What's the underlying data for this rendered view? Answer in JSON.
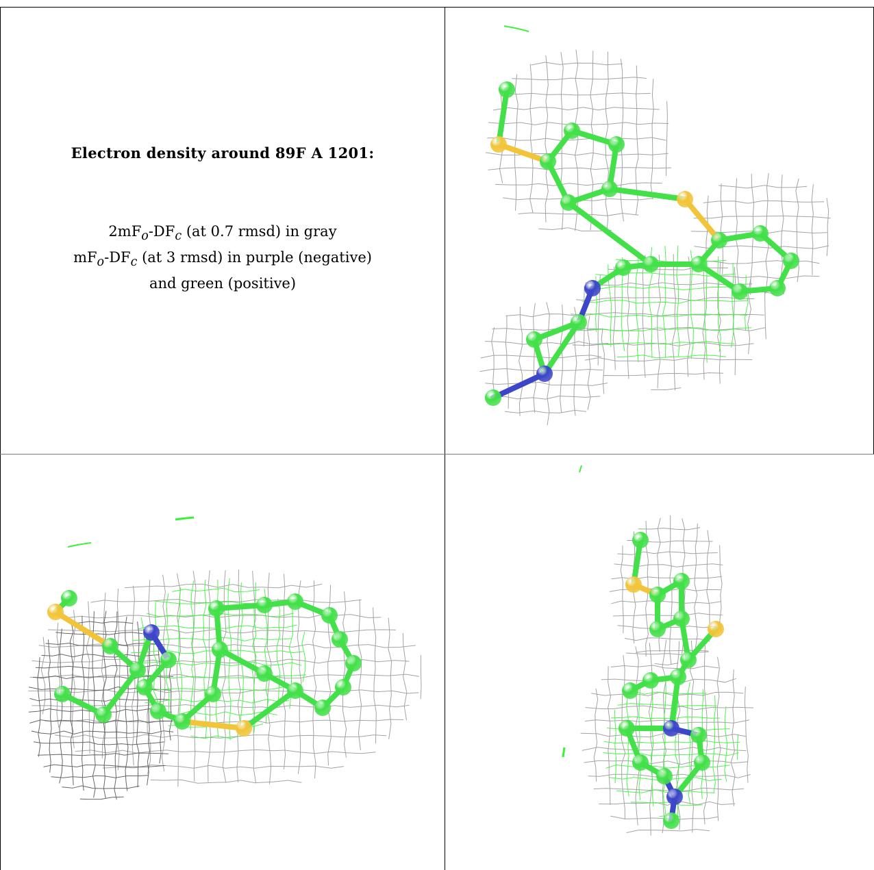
{
  "legend": {
    "title": "Electron density around 89F A 1201:",
    "line1": {
      "base": "2mF",
      "sub1": "o",
      "mid": "-DF",
      "sub2": "c",
      "tail": " (at 0.7 rmsd) in gray"
    },
    "line2": {
      "base": "mF",
      "sub1": "o",
      "mid": "-DF",
      "sub2": "c",
      "tail": " (at 3 rmsd) in purple (negative)"
    },
    "line3": "and green (positive)"
  },
  "colors": {
    "carbon": "#44e04a",
    "sulfur": "#f2c43a",
    "nitrogen": "#3d46c8",
    "mesh_gray": "#9a9a9a",
    "mesh_green": "#3cf03c",
    "border": "#000000"
  },
  "panels": [
    {
      "name": "view-1",
      "icon": "molecule-view"
    },
    {
      "name": "view-2",
      "icon": "molecule-view"
    },
    {
      "name": "view-3",
      "icon": "molecule-view"
    }
  ]
}
